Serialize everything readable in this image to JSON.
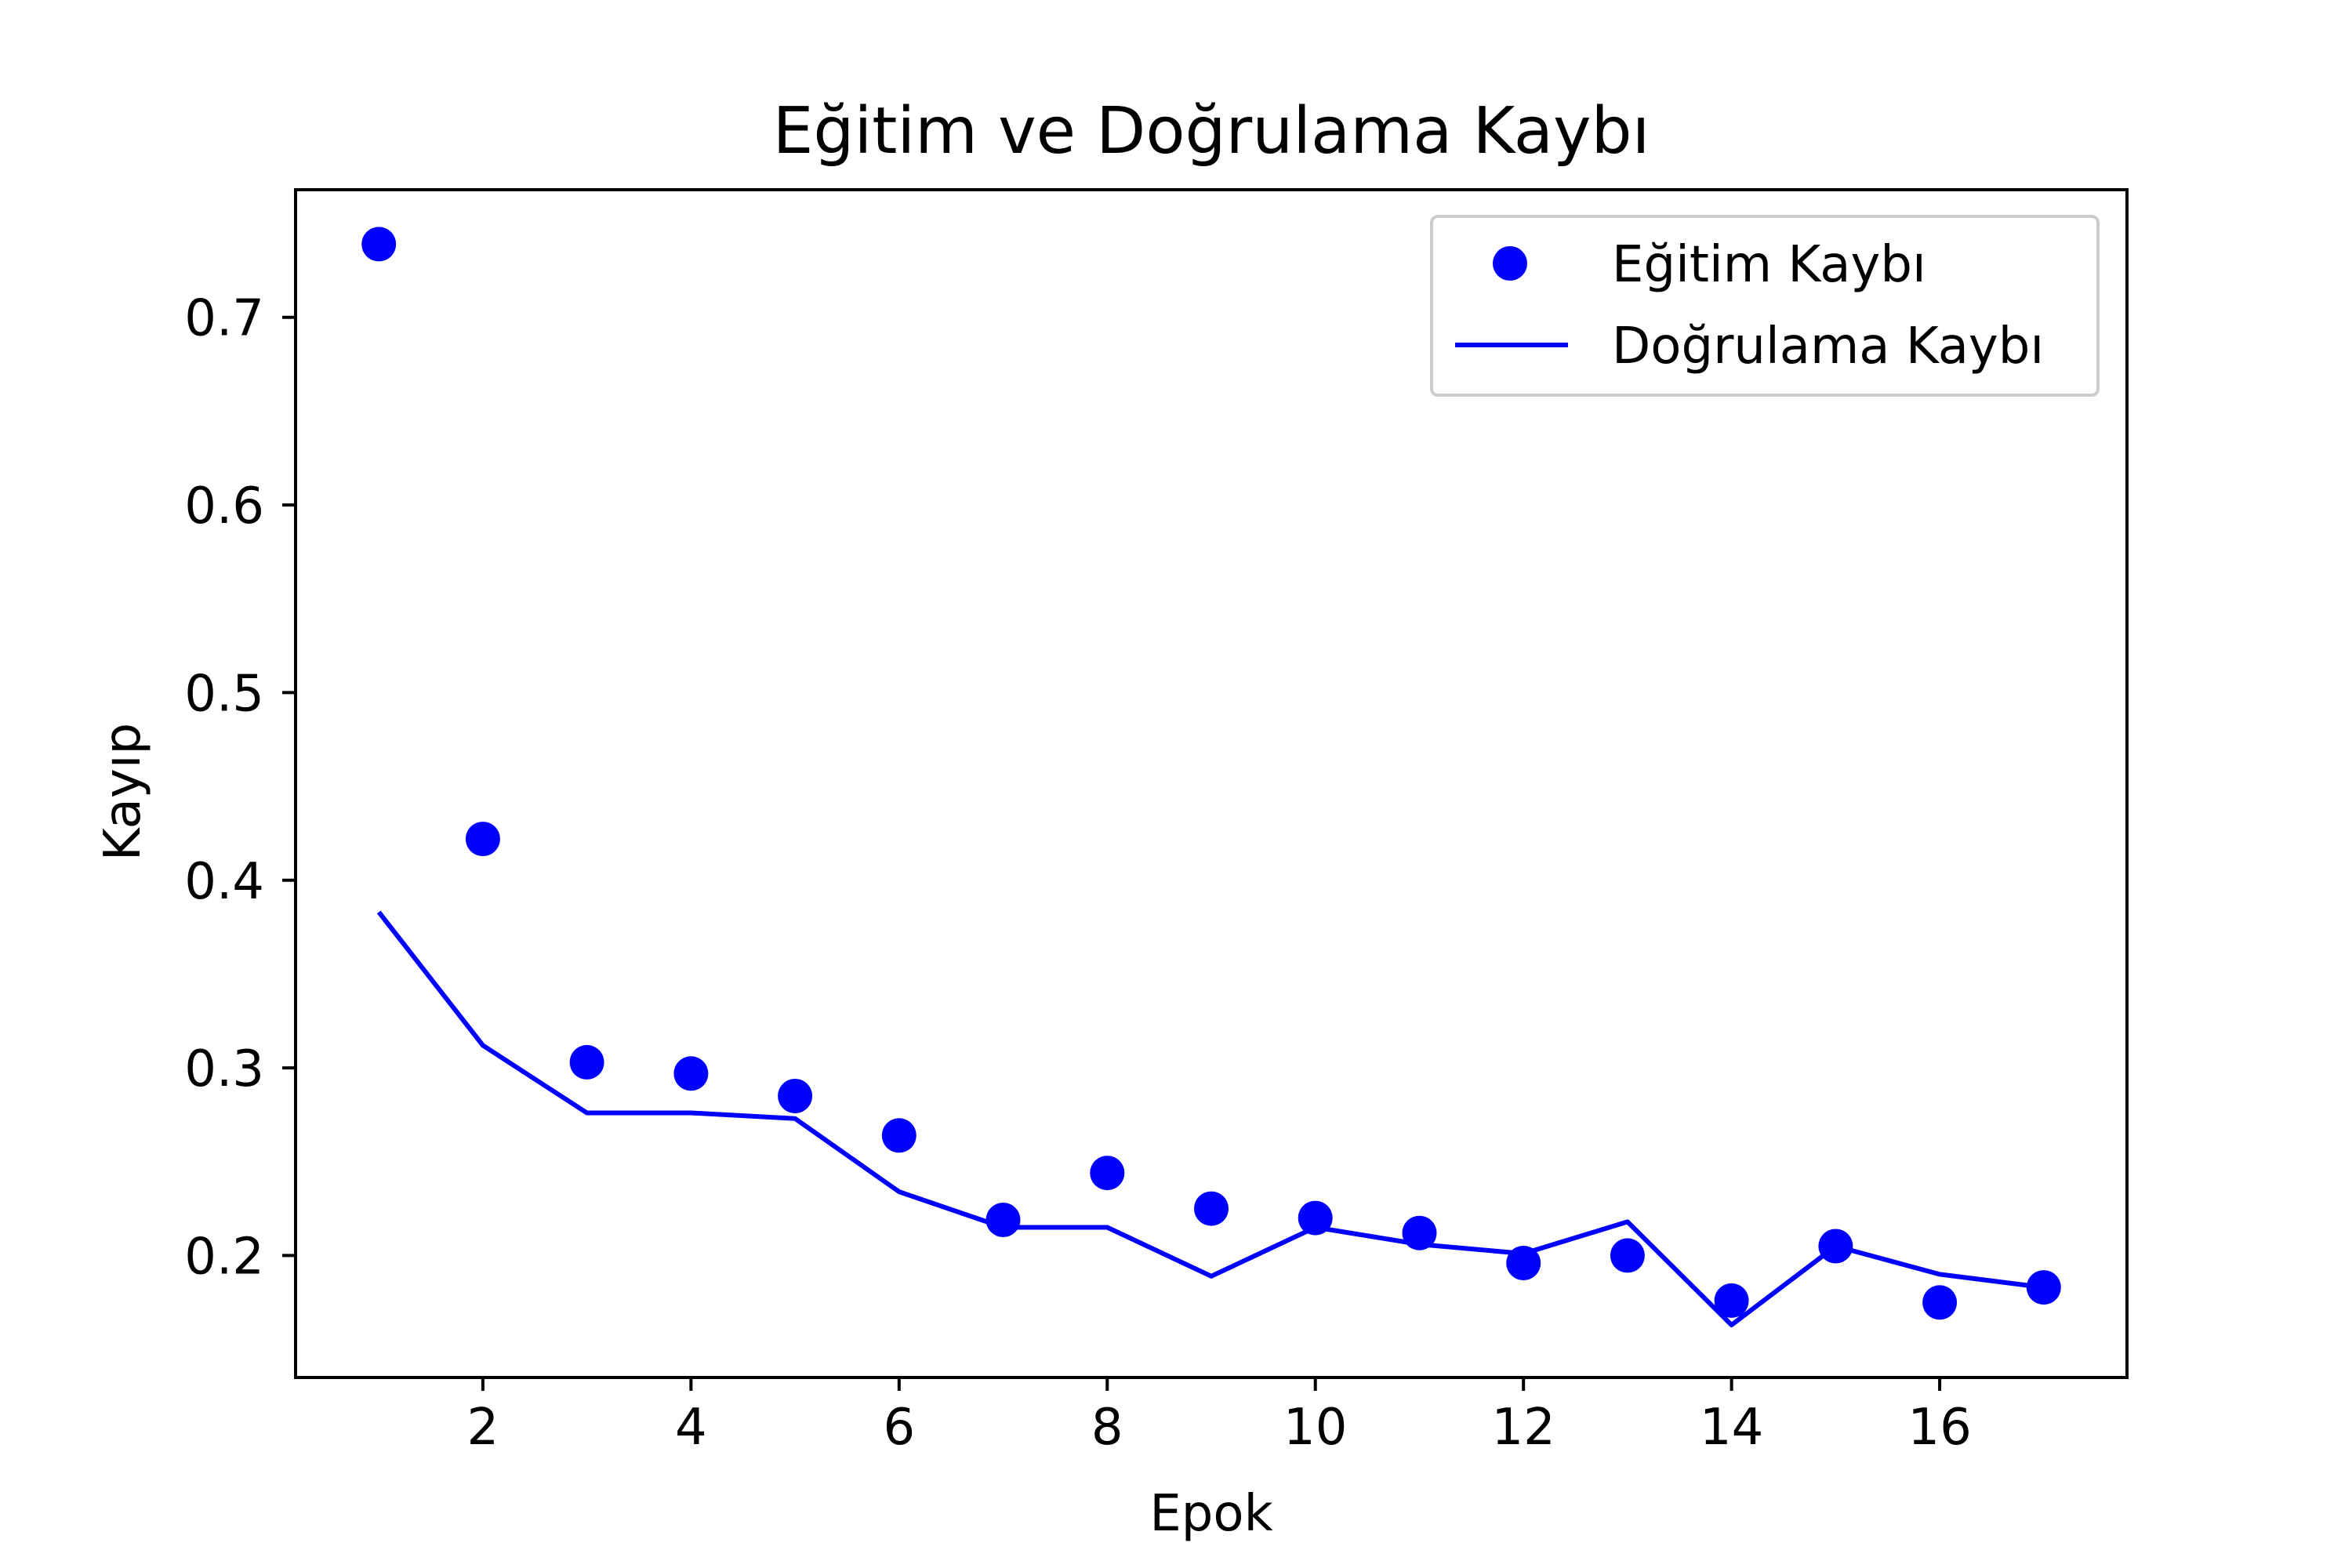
{
  "chart_data": {
    "type": "line",
    "title": "Eğitim ve Doğrulama Kaybı",
    "xlabel": "Epok",
    "ylabel": "Kayıp",
    "xlim": [
      0.2,
      17.8
    ],
    "ylim": [
      0.135,
      0.768
    ],
    "x_ticks": [
      2,
      4,
      6,
      8,
      10,
      12,
      14,
      16
    ],
    "x_tick_labels": [
      "2",
      "4",
      "6",
      "8",
      "10",
      "12",
      "14",
      "16"
    ],
    "y_ticks": [
      0.2,
      0.3,
      0.4,
      0.5,
      0.6,
      0.7
    ],
    "y_tick_labels": [
      "0.2",
      "0.3",
      "0.4",
      "0.5",
      "0.6",
      "0.7"
    ],
    "grid": false,
    "legend_position": "top-right",
    "x": [
      1,
      2,
      3,
      4,
      5,
      6,
      7,
      8,
      9,
      10,
      11,
      12,
      13,
      14,
      15,
      16,
      17
    ],
    "series": [
      {
        "name": "Eğitim Kaybı",
        "style": "markers",
        "color": "#0000ff",
        "values": [
          0.739,
          0.422,
          0.303,
          0.297,
          0.285,
          0.264,
          0.219,
          0.244,
          0.225,
          0.22,
          0.212,
          0.196,
          0.2,
          0.176,
          0.205,
          0.175,
          0.183
        ]
      },
      {
        "name": "Doğrulama Kaybı",
        "style": "line",
        "color": "#0000ff",
        "values": [
          0.383,
          0.312,
          0.276,
          0.276,
          0.273,
          0.234,
          0.215,
          0.215,
          0.189,
          0.215,
          0.206,
          0.201,
          0.218,
          0.163,
          0.205,
          0.19,
          0.183
        ]
      }
    ]
  }
}
